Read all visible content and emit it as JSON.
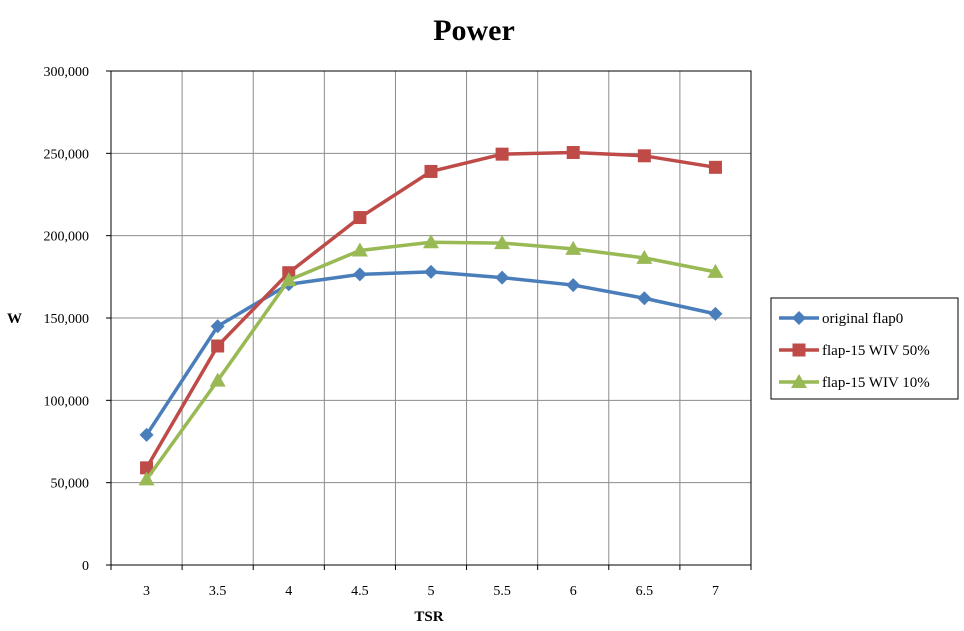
{
  "chart_data": {
    "type": "line",
    "title": "Power",
    "xlabel": "TSR",
    "ylabel": "W",
    "categories": [
      "3",
      "3.5",
      "4",
      "4.5",
      "5",
      "5.5",
      "6",
      "6.5",
      "7"
    ],
    "ylim": [
      0,
      300000
    ],
    "yticks": [
      0,
      50000,
      100000,
      150000,
      200000,
      250000,
      300000
    ],
    "ytick_labels": [
      "0",
      "50,000",
      "100,000",
      "150,000",
      "200,000",
      "250,000",
      "300,000"
    ],
    "grid": true,
    "legend_position": "right",
    "series": [
      {
        "name": "original flap0",
        "color": "#4a7ebb",
        "marker": "diamond",
        "values": [
          79000,
          145000,
          170500,
          176500,
          178000,
          174500,
          170000,
          162000,
          152500
        ]
      },
      {
        "name": "flap-15 WIV 50%",
        "color": "#be4b48",
        "marker": "square",
        "values": [
          59000,
          133000,
          177500,
          211000,
          239000,
          249500,
          250500,
          248500,
          241500
        ]
      },
      {
        "name": "flap-15 WIV 10%",
        "color": "#98b954",
        "marker": "triangle",
        "values": [
          52000,
          112000,
          173000,
          191000,
          196000,
          195500,
          192000,
          186500,
          178000
        ]
      }
    ]
  }
}
